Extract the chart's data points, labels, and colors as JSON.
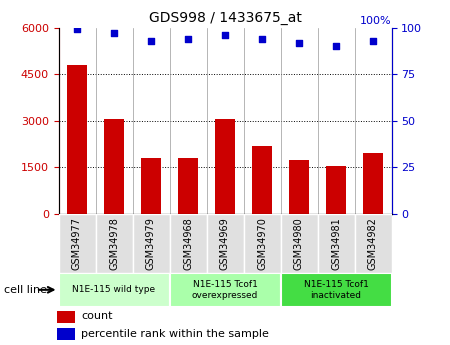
{
  "title": "GDS998 / 1433675_at",
  "categories": [
    "GSM34977",
    "GSM34978",
    "GSM34979",
    "GSM34968",
    "GSM34969",
    "GSM34970",
    "GSM34980",
    "GSM34981",
    "GSM34982"
  ],
  "counts": [
    4800,
    3050,
    1800,
    1800,
    3050,
    2200,
    1750,
    1530,
    1950
  ],
  "percentile_ranks": [
    99,
    97,
    93,
    94,
    96,
    94,
    92,
    90,
    93
  ],
  "ylim_left": [
    0,
    6000
  ],
  "ylim_right": [
    0,
    100
  ],
  "yticks_left": [
    0,
    1500,
    3000,
    4500,
    6000
  ],
  "yticks_right": [
    0,
    25,
    50,
    75,
    100
  ],
  "bar_color": "#cc0000",
  "dot_color": "#0000cc",
  "cell_line_groups": [
    {
      "label": "N1E-115 wild type",
      "indices": [
        0,
        1,
        2
      ],
      "color": "#ccffcc"
    },
    {
      "label": "N1E-115 Tcof1\noverexpressed",
      "indices": [
        3,
        4,
        5
      ],
      "color": "#aaffaa"
    },
    {
      "label": "N1E-115 Tcof1\ninactivated",
      "indices": [
        6,
        7,
        8
      ],
      "color": "#44dd44"
    }
  ],
  "legend_count_label": "count",
  "legend_percentile_label": "percentile rank within the sample",
  "cell_line_label": "cell line",
  "xticklabel_bg": "#e0e0e0"
}
